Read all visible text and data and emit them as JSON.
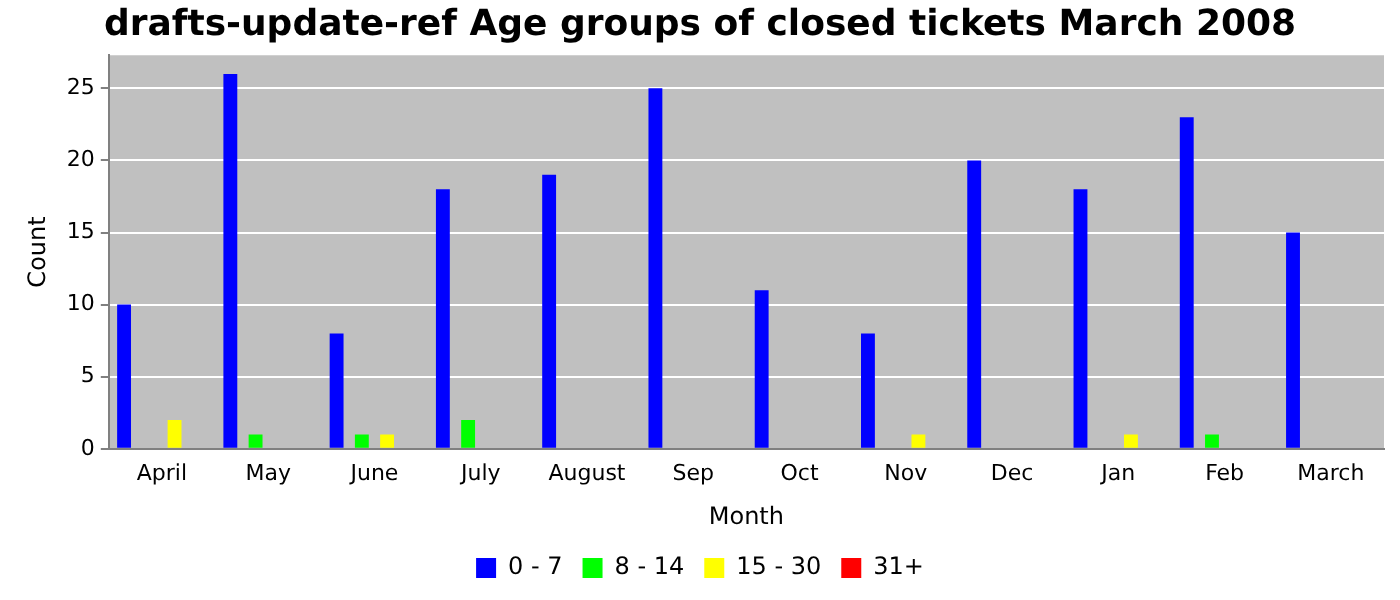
{
  "chart_data": {
    "type": "bar",
    "title": "drafts-update-ref Age groups of closed tickets March 2008",
    "xlabel": "Month",
    "ylabel": "Count",
    "categories": [
      "April",
      "May",
      "June",
      "July",
      "August",
      "Sep",
      "Oct",
      "Nov",
      "Dec",
      "Jan",
      "Feb",
      "March"
    ],
    "series": [
      {
        "name": "0 - 7",
        "color": "#0000ff",
        "values": [
          10,
          26,
          8,
          18,
          19,
          25,
          11,
          8,
          20,
          18,
          23,
          15
        ]
      },
      {
        "name": "8 - 14",
        "color": "#00ff00",
        "values": [
          0,
          1,
          1,
          2,
          0,
          0,
          0,
          0,
          0,
          0,
          1,
          0
        ]
      },
      {
        "name": "15 - 30",
        "color": "#ffff00",
        "values": [
          2,
          0,
          1,
          0,
          0,
          0,
          0,
          1,
          0,
          1,
          0,
          0
        ]
      },
      {
        "name": "31+",
        "color": "#ff0000",
        "values": [
          0,
          0,
          0,
          0,
          0,
          0,
          0,
          0,
          0,
          0,
          0,
          0
        ]
      }
    ],
    "ylim": [
      0,
      27.3
    ],
    "yticks": [
      0,
      5,
      10,
      15,
      20,
      25
    ],
    "grid": "y",
    "legend": "bottom"
  }
}
